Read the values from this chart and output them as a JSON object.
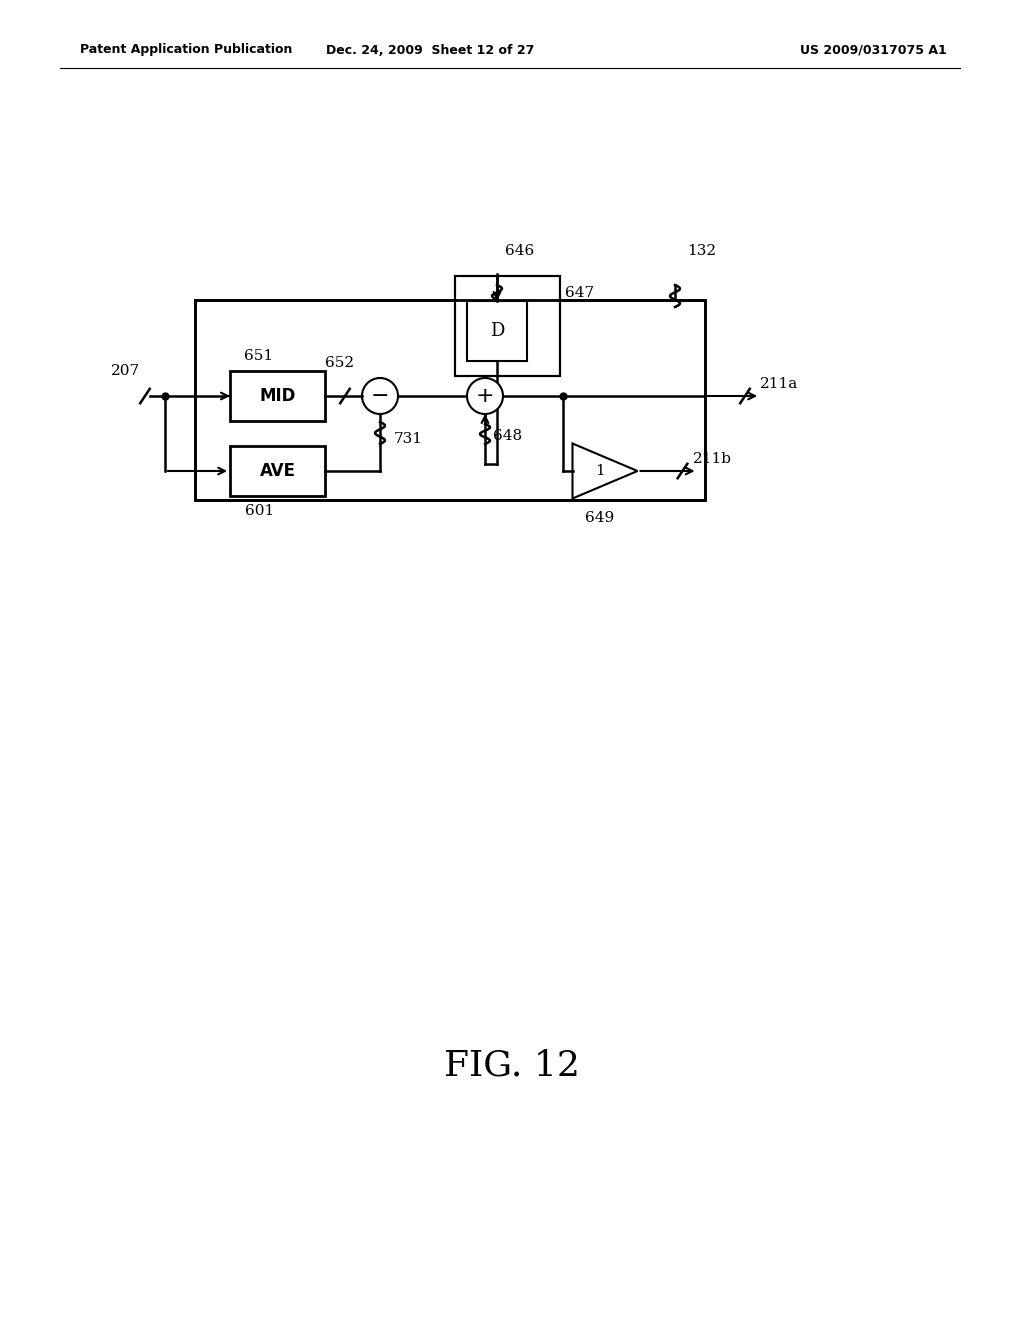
{
  "bg_color": "#ffffff",
  "header_left": "Patent Application Publication",
  "header_mid": "Dec. 24, 2009  Sheet 12 of 27",
  "header_right": "US 2009/0317075 A1",
  "fig_label": "FIG. 12",
  "lw": 1.8,
  "black": "#000000"
}
